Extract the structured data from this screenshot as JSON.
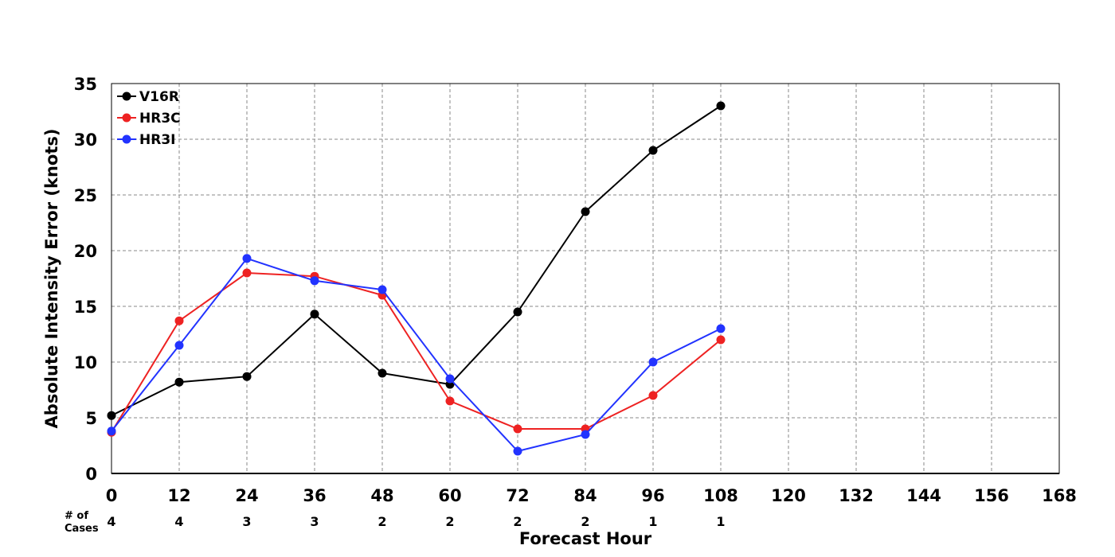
{
  "chart_data": {
    "type": "line",
    "xlabel": "Forecast Hour",
    "ylabel": "Absolute Intensity Error (knots)",
    "xlim": [
      0,
      168
    ],
    "ylim": [
      0,
      35
    ],
    "x_ticks": [
      0,
      12,
      24,
      36,
      48,
      60,
      72,
      84,
      96,
      108,
      120,
      132,
      144,
      156,
      168
    ],
    "y_ticks": [
      0,
      5,
      10,
      15,
      20,
      25,
      30,
      35
    ],
    "grid": true,
    "legend_position": "top-left",
    "cases_label": "# of Cases",
    "cases_label_lines": [
      "# of",
      "Cases"
    ],
    "cases": [
      {
        "x": 0,
        "n": "4"
      },
      {
        "x": 12,
        "n": "4"
      },
      {
        "x": 24,
        "n": "3"
      },
      {
        "x": 36,
        "n": "3"
      },
      {
        "x": 48,
        "n": "2"
      },
      {
        "x": 60,
        "n": "2"
      },
      {
        "x": 72,
        "n": "2"
      },
      {
        "x": 84,
        "n": "2"
      },
      {
        "x": 96,
        "n": "1"
      },
      {
        "x": 108,
        "n": "1"
      }
    ],
    "x": [
      0,
      12,
      24,
      36,
      48,
      60,
      72,
      84,
      96,
      108
    ],
    "series": [
      {
        "name": "V16R",
        "color": "#000000",
        "values": [
          5.2,
          8.2,
          8.7,
          14.3,
          9.0,
          8.0,
          14.5,
          23.5,
          29.0,
          33.0
        ]
      },
      {
        "name": "HR3C",
        "color": "#ee2222",
        "values": [
          3.7,
          13.7,
          18.0,
          17.7,
          16.0,
          6.5,
          4.0,
          4.0,
          7.0,
          12.0
        ]
      },
      {
        "name": "HR3I",
        "color": "#2233ff",
        "values": [
          3.8,
          11.5,
          19.3,
          17.3,
          16.5,
          8.5,
          2.0,
          3.5,
          10.0,
          13.0
        ]
      }
    ]
  }
}
